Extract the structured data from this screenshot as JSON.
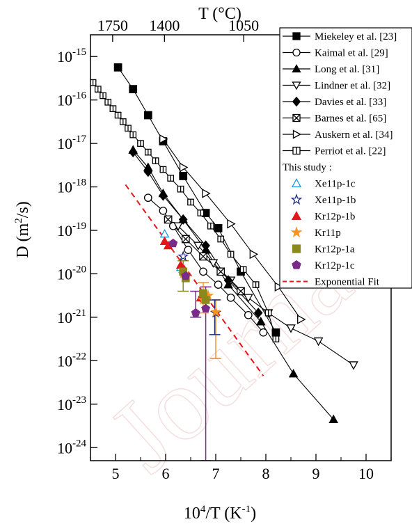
{
  "chart_data": {
    "type": "scatter",
    "title": "",
    "xlabel": "10^4/T (K^-1)",
    "ylabel": "D (m^2/s)",
    "top_xlabel": "T (°C)",
    "xlim": [
      4.5,
      10.5
    ],
    "ylim_log10": [
      -24.3,
      -14.5
    ],
    "y_scale": "log",
    "grid": false,
    "legend_position": "top-right",
    "x_ticks": [
      "5",
      "6",
      "7",
      "8",
      "9",
      "10"
    ],
    "x_tick_values": [
      5,
      6,
      7,
      8,
      9,
      10
    ],
    "y_tick_exponents": [
      -15,
      -16,
      -17,
      -18,
      -19,
      -20,
      -21,
      -22,
      -23,
      -24
    ],
    "top_ticks": [
      {
        "label": "1750",
        "celsius": 1750
      },
      {
        "label": "1400",
        "celsius": 1400
      },
      {
        "label": "1050",
        "celsius": 1050
      }
    ],
    "legend_header": "This study :",
    "series": [
      {
        "name": "Miekeley et al. [23]",
        "marker": "square-filled",
        "color": "#000000",
        "x": [
          5.05,
          5.35,
          5.65,
          5.95,
          6.35,
          6.8,
          7.05,
          7.5,
          8.2
        ],
        "log10_y": [
          -15.25,
          -15.75,
          -16.35,
          -16.95,
          -17.75,
          -18.6,
          -18.95,
          -19.95,
          -21.35
        ]
      },
      {
        "name": "Kaimal et al. [29]",
        "marker": "circle-open",
        "color": "#000000",
        "x": [
          5.65,
          5.95,
          6.15,
          6.45,
          6.75,
          7.05,
          7.3,
          7.65,
          7.95
        ],
        "log10_y": [
          -18.25,
          -18.55,
          -18.9,
          -19.45,
          -19.95,
          -20.25,
          -20.55,
          -20.95,
          -21.35
        ]
      },
      {
        "name": "Long et al. [31]",
        "marker": "triangle-filled",
        "color": "#000000",
        "x": [
          5.35,
          5.65,
          5.95,
          6.35,
          6.8,
          7.25,
          7.9,
          8.55,
          9.35
        ],
        "log10_y": [
          -17.15,
          -17.55,
          -18.15,
          -18.75,
          -19.45,
          -20.25,
          -21.1,
          -22.3,
          -23.35
        ]
      },
      {
        "name": "Lindner et al. [32]",
        "marker": "triangle-down-open",
        "color": "#000000",
        "x": [
          6.25,
          6.65,
          6.95,
          7.3,
          7.65,
          8.05,
          8.5,
          9.05,
          9.75
        ],
        "log10_y": [
          -18.9,
          -19.35,
          -19.75,
          -20.15,
          -20.55,
          -20.9,
          -21.25,
          -21.55,
          -22.1
        ]
      },
      {
        "name": "Davies et al. [33]",
        "marker": "diamond-filled",
        "color": "#000000",
        "x": [
          5.35,
          5.65,
          5.95,
          6.35,
          6.8,
          7.25,
          7.85
        ],
        "log10_y": [
          -17.2,
          -17.65,
          -18.2,
          -18.75,
          -19.35,
          -20.15,
          -20.9
        ]
      },
      {
        "name": "Barnes et al. [65]",
        "marker": "square-x-open",
        "color": "#000000",
        "x": [
          6.05,
          6.4,
          6.75,
          7.1,
          7.5
        ],
        "log10_y": [
          -18.75,
          -19.2,
          -19.6,
          -19.95,
          -20.4
        ]
      },
      {
        "name": "Auskern et al. [34]",
        "marker": "triangle-right-open",
        "color": "#000000",
        "x": [
          5.95,
          6.35,
          6.8,
          7.3,
          7.75,
          8.25,
          8.7
        ],
        "log10_y": [
          -16.9,
          -17.55,
          -18.15,
          -18.85,
          -19.55,
          -20.3,
          -21.05
        ]
      },
      {
        "name": "Perriot et al. [22]",
        "marker": "square-bar-open",
        "color": "#000000",
        "x": [
          4.55,
          4.65,
          4.75,
          4.85,
          4.95,
          5.05,
          5.15,
          5.25,
          5.35,
          5.5,
          5.65,
          5.8,
          5.95,
          6.1,
          6.3,
          6.5,
          6.7,
          6.9,
          7.1,
          7.3,
          7.55,
          7.8,
          8.05,
          8.2
        ],
        "log10_y": [
          -15.6,
          -15.75,
          -15.9,
          -16.05,
          -16.2,
          -16.35,
          -16.5,
          -16.65,
          -16.8,
          -17.0,
          -17.2,
          -17.4,
          -17.6,
          -17.8,
          -18.05,
          -18.35,
          -18.6,
          -18.9,
          -19.2,
          -19.55,
          -19.9,
          -20.25,
          -20.9,
          -21.5
        ]
      },
      {
        "name": "Xe11p-1c",
        "marker": "triangle-open",
        "color": "#1a9bd7",
        "x": [
          5.98,
          6.3
        ],
        "log10_y": [
          -19.08,
          -19.85
        ]
      },
      {
        "name": "Xe11p-1b",
        "marker": "star-open",
        "color": "#1b2a7a",
        "x": [
          6.35,
          6.75,
          7.0
        ],
        "log10_y": [
          -19.6,
          -20.55,
          -20.9
        ]
      },
      {
        "name": "Kr12p-1b",
        "marker": "triangle-filled",
        "color": "#e4161b",
        "x": [
          5.98,
          6.05,
          6.3,
          6.7
        ],
        "log10_y": [
          -19.25,
          -19.35,
          -19.8,
          -20.55
        ]
      },
      {
        "name": "Kr11p",
        "marker": "star-filled",
        "color": "#f5922a",
        "x": [
          6.35,
          6.75,
          6.85,
          7.0
        ],
        "log10_y": [
          -20.0,
          -20.6,
          -20.5,
          -20.88
        ]
      },
      {
        "name": "Kr12p-1a",
        "marker": "square-filled",
        "color": "#8a8a1c",
        "x": [
          6.35,
          6.4,
          6.75,
          6.8
        ],
        "log10_y": [
          -19.95,
          -20.1,
          -20.45,
          -20.6
        ]
      },
      {
        "name": "Kr12p-1c",
        "marker": "pentagon-filled",
        "color": "#7a2b8a",
        "x": [
          6.15,
          6.4,
          6.6,
          6.8
        ],
        "log10_y": [
          -19.3,
          -20.05,
          -20.9,
          -20.8
        ]
      }
    ],
    "fit": {
      "name": "Exponential Fit",
      "color": "#e4161b",
      "style": "dashed",
      "x": [
        5.2,
        7.95
      ],
      "log10_y": [
        -17.95,
        -22.35
      ]
    },
    "error_bars": [
      {
        "x": 6.8,
        "log10_low": -24.3,
        "log10_high": -20.3,
        "color": "#7a2b8a"
      },
      {
        "x": 6.6,
        "log10_low": -21.0,
        "log10_high": -20.4,
        "color": "#7a2b8a"
      },
      {
        "x": 7.0,
        "log10_low": -21.95,
        "log10_high": -20.6,
        "color": "#f5922a"
      },
      {
        "x": 6.98,
        "log10_low": -21.4,
        "log10_high": -20.6,
        "color": "#1b2a7a"
      },
      {
        "x": 6.35,
        "log10_low": -20.4,
        "log10_high": -19.7,
        "color": "#8a8a1c"
      },
      {
        "x": 6.75,
        "log10_low": -20.9,
        "log10_high": -20.2,
        "color": "#f5922a"
      }
    ]
  }
}
